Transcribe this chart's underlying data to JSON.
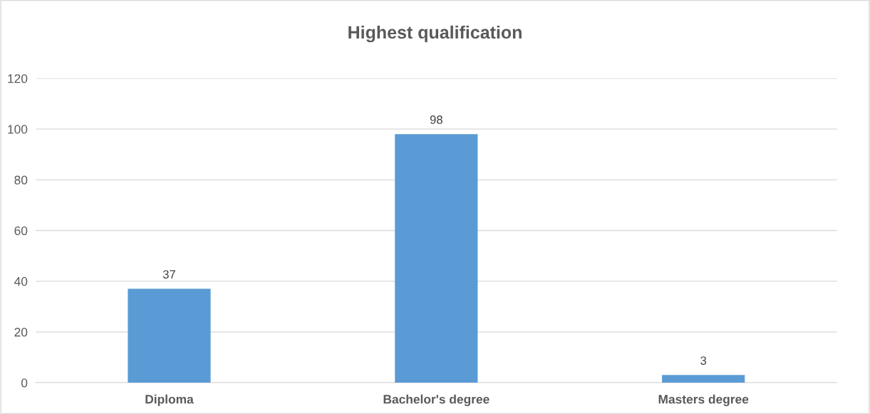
{
  "chart_data": {
    "type": "bar",
    "title": "Highest qualification",
    "categories": [
      "Diploma",
      "Bachelor's degree",
      "Masters degree"
    ],
    "values": [
      37,
      98,
      3
    ],
    "color": "#5b9bd5",
    "ylim": [
      0,
      120
    ],
    "yticks": [
      0,
      20,
      40,
      60,
      80,
      100,
      120
    ],
    "grid": "y",
    "data_labels": true
  }
}
